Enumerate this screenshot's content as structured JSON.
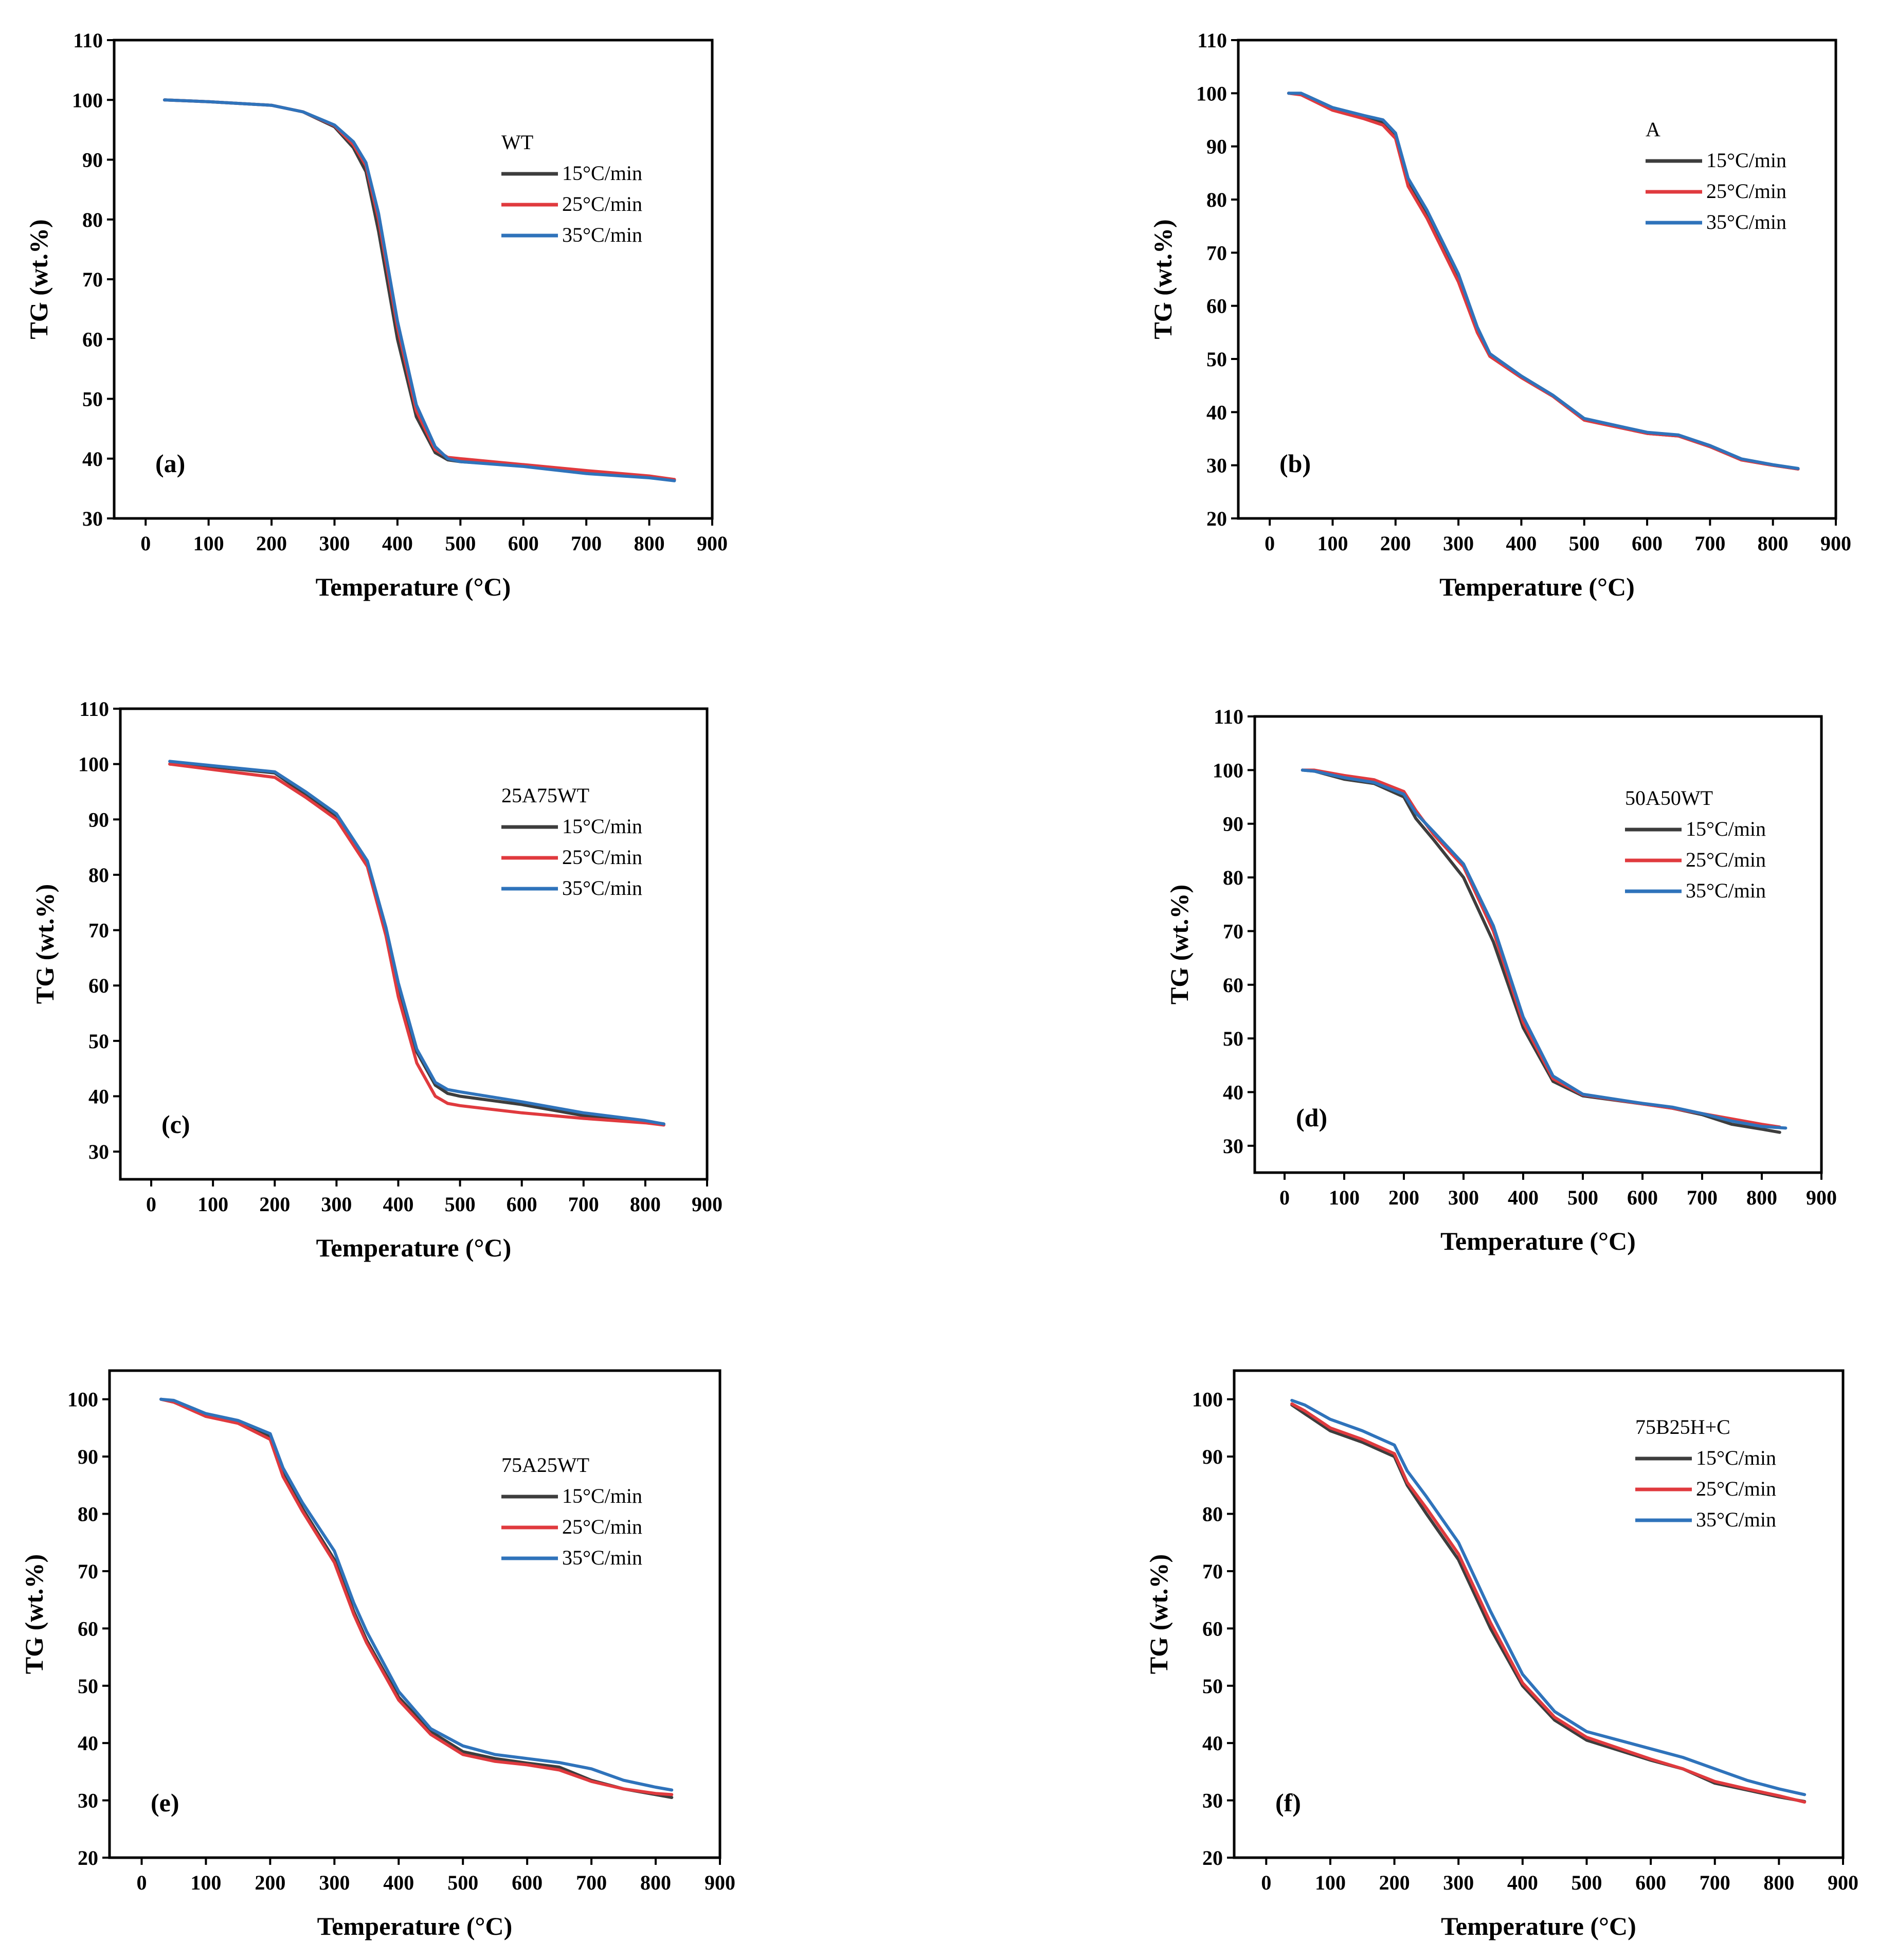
{
  "colors": {
    "15": "#3d3d3d",
    "25": "#e03a3e",
    "35": "#2f73bb"
  },
  "chart_data": [
    {
      "type": "line",
      "panel_label": "(a)",
      "legend_title": "WT",
      "xlabel": "Temperature (°C)",
      "ylabel": "TG (wt.%)",
      "xlim": [
        -50,
        900
      ],
      "ylim": [
        30,
        110
      ],
      "xticks": [
        0,
        100,
        200,
        300,
        400,
        500,
        600,
        700,
        800,
        900
      ],
      "yticks": [
        30,
        40,
        50,
        60,
        70,
        80,
        90,
        100,
        110
      ],
      "series": [
        {
          "name": "15°C/min",
          "color_key": "15",
          "x": [
            30,
            100,
            200,
            250,
            300,
            330,
            350,
            370,
            400,
            430,
            460,
            480,
            500,
            600,
            700,
            800,
            840
          ],
          "y": [
            100,
            99.7,
            99.1,
            98,
            95.5,
            92,
            88,
            78,
            60,
            47,
            41,
            39.8,
            39.5,
            38.8,
            37.8,
            37,
            36.5
          ]
        },
        {
          "name": "25°C/min",
          "color_key": "25",
          "x": [
            30,
            100,
            200,
            250,
            300,
            330,
            350,
            370,
            400,
            430,
            460,
            480,
            500,
            600,
            700,
            800,
            840
          ],
          "y": [
            100,
            99.7,
            99.1,
            98,
            95.7,
            92.5,
            89,
            80,
            62,
            48,
            41.5,
            40.2,
            40,
            39,
            38,
            37.1,
            36.5
          ]
        },
        {
          "name": "35°C/min",
          "color_key": "35",
          "x": [
            30,
            100,
            200,
            250,
            300,
            330,
            350,
            370,
            400,
            430,
            460,
            480,
            500,
            600,
            700,
            800,
            840
          ],
          "y": [
            100,
            99.7,
            99.1,
            98,
            95.8,
            93,
            89.5,
            81,
            63,
            49,
            42,
            40,
            39.5,
            38.7,
            37.5,
            36.8,
            36.3
          ]
        }
      ]
    },
    {
      "type": "line",
      "panel_label": "(b)",
      "legend_title": "A",
      "xlabel": "Temperature (°C)",
      "ylabel": "TG (wt.%)",
      "xlim": [
        -50,
        900
      ],
      "ylim": [
        20,
        110
      ],
      "xticks": [
        0,
        100,
        200,
        300,
        400,
        500,
        600,
        700,
        800,
        900
      ],
      "yticks": [
        20,
        30,
        40,
        50,
        60,
        70,
        80,
        90,
        100,
        110
      ],
      "series": [
        {
          "name": "15°C/min",
          "color_key": "15",
          "x": [
            30,
            50,
            100,
            150,
            180,
            200,
            220,
            250,
            300,
            330,
            350,
            400,
            450,
            500,
            600,
            650,
            700,
            750,
            800,
            840
          ],
          "y": [
            100,
            99.8,
            97,
            95.5,
            94.5,
            92,
            83,
            77,
            65,
            55,
            50.5,
            46.5,
            43,
            38.5,
            36,
            35.5,
            33.5,
            31,
            30,
            29.3
          ]
        },
        {
          "name": "25°C/min",
          "color_key": "25",
          "x": [
            30,
            50,
            100,
            150,
            180,
            200,
            220,
            250,
            300,
            330,
            350,
            400,
            450,
            500,
            600,
            650,
            700,
            750,
            800,
            840
          ],
          "y": [
            100,
            99.7,
            96.8,
            95.2,
            94,
            91.5,
            82.5,
            76.5,
            64.5,
            55,
            50.5,
            46.5,
            43,
            38.5,
            36,
            35.5,
            33.5,
            31,
            30,
            29.3
          ]
        },
        {
          "name": "35°C/min",
          "color_key": "35",
          "x": [
            30,
            50,
            100,
            150,
            180,
            200,
            220,
            250,
            300,
            330,
            350,
            400,
            450,
            500,
            600,
            650,
            700,
            750,
            800,
            840
          ],
          "y": [
            100,
            100,
            97.3,
            95.8,
            95,
            92.5,
            84,
            78,
            66,
            56,
            51,
            46.8,
            43.2,
            38.8,
            36.2,
            35.7,
            33.7,
            31.2,
            30.1,
            29.4
          ]
        }
      ]
    },
    {
      "type": "line",
      "panel_label": "(c)",
      "legend_title": "25A75WT",
      "xlabel": "Temperature (°C)",
      "ylabel": "TG (wt.%)",
      "xlim": [
        -50,
        900
      ],
      "ylim": [
        25,
        110
      ],
      "xticks": [
        0,
        100,
        200,
        300,
        400,
        500,
        600,
        700,
        800,
        900
      ],
      "yticks": [
        30,
        40,
        50,
        60,
        70,
        80,
        90,
        100,
        110
      ],
      "series": [
        {
          "name": "15°C/min",
          "color_key": "15",
          "x": [
            30,
            100,
            200,
            250,
            300,
            350,
            380,
            400,
            430,
            460,
            480,
            500,
            600,
            700,
            800,
            830
          ],
          "y": [
            100,
            99.5,
            98.4,
            94.5,
            90.5,
            82,
            70,
            60,
            48,
            42,
            40.5,
            40,
            38.5,
            36.5,
            35.5,
            35
          ]
        },
        {
          "name": "25°C/min",
          "color_key": "25",
          "x": [
            30,
            100,
            200,
            250,
            300,
            350,
            380,
            400,
            430,
            460,
            480,
            500,
            600,
            700,
            800,
            830
          ],
          "y": [
            100,
            99,
            97.6,
            94,
            90,
            81.5,
            69,
            58,
            46,
            40,
            38.7,
            38.3,
            37,
            36,
            35.2,
            34.8
          ]
        },
        {
          "name": "35°C/min",
          "color_key": "35",
          "x": [
            30,
            100,
            200,
            250,
            300,
            350,
            380,
            400,
            430,
            460,
            480,
            500,
            600,
            700,
            800,
            830
          ],
          "y": [
            100.5,
            99.7,
            98.6,
            95,
            91,
            82.5,
            70.5,
            60.5,
            48.5,
            42.5,
            41.2,
            40.8,
            39,
            37,
            35.6,
            35
          ]
        }
      ]
    },
    {
      "type": "line",
      "panel_label": "(d)",
      "legend_title": "50A50WT",
      "xlabel": "Temperature (°C)",
      "ylabel": "TG (wt.%)",
      "xlim": [
        -50,
        900
      ],
      "ylim": [
        25,
        110
      ],
      "xticks": [
        0,
        100,
        200,
        300,
        400,
        500,
        600,
        700,
        800,
        900
      ],
      "yticks": [
        30,
        40,
        50,
        60,
        70,
        80,
        90,
        100,
        110
      ],
      "series": [
        {
          "name": "15°C/min",
          "color_key": "15",
          "x": [
            30,
            50,
            100,
            150,
            200,
            220,
            250,
            300,
            350,
            400,
            450,
            500,
            600,
            650,
            700,
            750,
            800,
            830
          ],
          "y": [
            100,
            99.8,
            98.3,
            97.5,
            95,
            91,
            87,
            80,
            68,
            52,
            42,
            39.3,
            37.8,
            37,
            35.8,
            34,
            33.1,
            32.5
          ]
        },
        {
          "name": "25°C/min",
          "color_key": "25",
          "x": [
            30,
            50,
            100,
            150,
            200,
            220,
            250,
            300,
            350,
            400,
            450,
            500,
            600,
            650,
            700,
            750,
            800,
            830
          ],
          "y": [
            100,
            100,
            99,
            98.2,
            96,
            92.5,
            88,
            82,
            70,
            53,
            42.5,
            39.5,
            37.8,
            37,
            36,
            35,
            34,
            33.5
          ]
        },
        {
          "name": "35°C/min",
          "color_key": "35",
          "x": [
            30,
            50,
            100,
            150,
            200,
            220,
            250,
            300,
            350,
            400,
            450,
            500,
            600,
            650,
            700,
            750,
            800,
            840
          ],
          "y": [
            100,
            99.8,
            98.6,
            97.7,
            95.5,
            92,
            88.5,
            82.5,
            71,
            54,
            43,
            39.6,
            37.9,
            37.2,
            36,
            34.6,
            33.6,
            33.3
          ]
        }
      ]
    },
    {
      "type": "line",
      "panel_label": "(e)",
      "legend_title": "75A25WT",
      "xlabel": "Temperature (°C)",
      "ylabel": "TG (wt.%)",
      "xlim": [
        -50,
        900
      ],
      "ylim": [
        20,
        105
      ],
      "xticks": [
        0,
        100,
        200,
        300,
        400,
        500,
        600,
        700,
        800,
        900
      ],
      "yticks": [
        20,
        30,
        40,
        50,
        60,
        70,
        80,
        90,
        100
      ],
      "series": [
        {
          "name": "15°C/min",
          "color_key": "15",
          "x": [
            30,
            50,
            100,
            150,
            200,
            220,
            250,
            300,
            330,
            350,
            400,
            450,
            500,
            550,
            600,
            650,
            700,
            750,
            800,
            825
          ],
          "y": [
            100,
            99.5,
            97.2,
            96,
            93.5,
            87,
            81,
            72,
            63,
            58,
            48,
            42,
            38.5,
            37.3,
            36.5,
            35.8,
            33.5,
            32,
            31,
            30.5
          ]
        },
        {
          "name": "25°C/min",
          "color_key": "25",
          "x": [
            30,
            50,
            100,
            150,
            200,
            220,
            250,
            300,
            330,
            350,
            400,
            450,
            500,
            550,
            600,
            650,
            700,
            750,
            800,
            825
          ],
          "y": [
            100,
            99.5,
            97,
            95.8,
            93,
            86.5,
            80.5,
            71.5,
            62.5,
            57.5,
            47.5,
            41.5,
            38,
            36.8,
            36.2,
            35.3,
            33.3,
            32,
            31.2,
            31
          ]
        },
        {
          "name": "35°C/min",
          "color_key": "35",
          "x": [
            30,
            50,
            100,
            150,
            200,
            220,
            250,
            300,
            330,
            350,
            400,
            450,
            500,
            550,
            600,
            650,
            700,
            750,
            800,
            825
          ],
          "y": [
            100,
            99.8,
            97.5,
            96.3,
            94,
            88,
            82,
            73.5,
            64.5,
            59.5,
            49,
            42.5,
            39.5,
            38,
            37.3,
            36.6,
            35.5,
            33.5,
            32.3,
            31.8
          ]
        }
      ]
    },
    {
      "type": "line",
      "panel_label": "(f)",
      "legend_title": "75B25H+C",
      "xlabel": "Temperature (°C)",
      "ylabel": "TG (wt.%)",
      "xlim": [
        -50,
        900
      ],
      "ylim": [
        20,
        105
      ],
      "xticks": [
        0,
        100,
        200,
        300,
        400,
        500,
        600,
        700,
        800,
        900
      ],
      "yticks": [
        20,
        30,
        40,
        50,
        60,
        70,
        80,
        90,
        100
      ],
      "series": [
        {
          "name": "15°C/min",
          "color_key": "15",
          "x": [
            40,
            60,
            100,
            150,
            200,
            220,
            250,
            300,
            350,
            400,
            450,
            500,
            600,
            650,
            700,
            750,
            800,
            840
          ],
          "y": [
            99,
            97.5,
            94.5,
            92.5,
            90,
            85,
            80,
            72,
            60,
            50,
            44,
            40.5,
            37,
            35.5,
            33,
            31.8,
            30.6,
            29.8
          ]
        },
        {
          "name": "25°C/min",
          "color_key": "25",
          "x": [
            40,
            60,
            100,
            150,
            200,
            220,
            250,
            300,
            350,
            400,
            450,
            500,
            600,
            650,
            700,
            750,
            800,
            840
          ],
          "y": [
            99.2,
            98,
            95,
            93,
            90.5,
            85.5,
            81,
            73,
            61,
            50.5,
            44.5,
            41,
            37.2,
            35.5,
            33.3,
            32,
            30.8,
            29.7
          ]
        },
        {
          "name": "35°C/min",
          "color_key": "35",
          "x": [
            40,
            60,
            100,
            150,
            200,
            220,
            250,
            300,
            350,
            400,
            450,
            500,
            600,
            650,
            700,
            750,
            800,
            840
          ],
          "y": [
            99.8,
            99,
            96.5,
            94.5,
            92,
            87.5,
            83,
            75,
            63,
            52,
            45.5,
            42,
            39,
            37.5,
            35.5,
            33.5,
            32,
            31
          ]
        }
      ]
    }
  ]
}
